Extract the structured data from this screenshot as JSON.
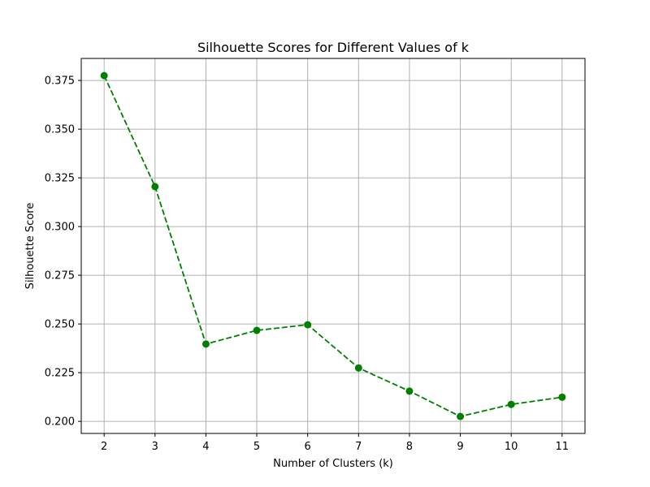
{
  "chart_data": {
    "type": "line",
    "title": "Silhouette Scores for Different Values of k",
    "xlabel": "Number of Clusters (k)",
    "ylabel": "Silhouette Score",
    "x": [
      2,
      3,
      4,
      5,
      6,
      7,
      8,
      9,
      10,
      11
    ],
    "series": [
      {
        "values": [
          0.3775,
          0.3205,
          0.2397,
          0.2467,
          0.2496,
          0.2274,
          0.2155,
          0.2025,
          0.2087,
          0.2124
        ]
      }
    ],
    "xlim": [
      1.55,
      11.45
    ],
    "ylim": [
      0.1938,
      0.3863
    ],
    "xticks": [
      2,
      3,
      4,
      5,
      6,
      7,
      8,
      9,
      10,
      11
    ],
    "yticks": [
      0.2,
      0.225,
      0.25,
      0.275,
      0.3,
      0.325,
      0.35,
      0.375
    ],
    "ytick_labels": [
      "0.200",
      "0.225",
      "0.250",
      "0.275",
      "0.300",
      "0.325",
      "0.350",
      "0.375"
    ],
    "grid": true,
    "line_style": "dashed",
    "marker": "circle",
    "colors": {
      "series": "#008000",
      "grid": "#b0b0b0",
      "axes": "#000000"
    }
  }
}
